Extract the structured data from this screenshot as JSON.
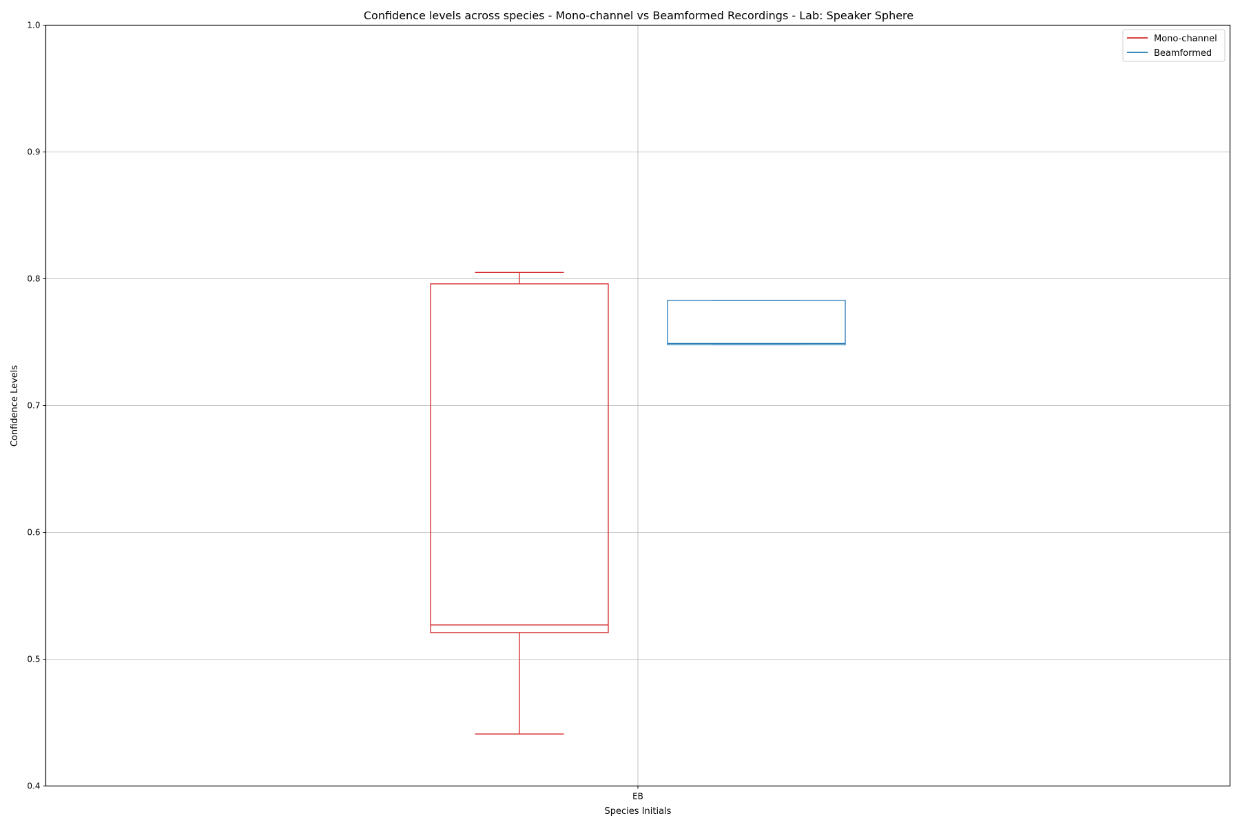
{
  "chart_data": {
    "type": "box",
    "title": "Confidence levels across species - Mono-channel vs Beamformed Recordings - Lab: Speaker Sphere",
    "xlabel": "Species Initials",
    "ylabel": "Confidence Levels",
    "categories": [
      "EB"
    ],
    "ylim": [
      0.4,
      1.0
    ],
    "yticks": [
      "0.4",
      "0.5",
      "0.6",
      "0.7",
      "0.8",
      "0.9",
      "1.0"
    ],
    "grid": true,
    "legend_position": "top-right",
    "series": [
      {
        "name": "Mono-channel",
        "color": "#d62728",
        "boxes": [
          {
            "category": "EB",
            "whisker_low": 0.441,
            "q1": 0.521,
            "median": 0.527,
            "q3": 0.796,
            "whisker_high": 0.805
          }
        ]
      },
      {
        "name": "Beamformed",
        "color": "#1f77b4",
        "boxes": [
          {
            "category": "EB",
            "whisker_low": 0.748,
            "q1": 0.748,
            "median": 0.749,
            "q3": 0.783,
            "whisker_high": 0.783
          }
        ]
      }
    ]
  }
}
